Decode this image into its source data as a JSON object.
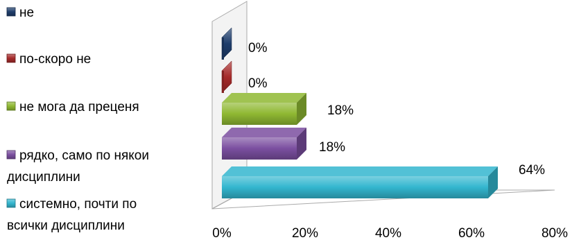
{
  "chart_data": {
    "type": "bar",
    "orientation": "horizontal",
    "style": "3d",
    "categories": [
      "не",
      "по-скоро не",
      "не мога да преценя",
      "рядко, само по някои дисциплини",
      "системно, почти по всички дисциплини"
    ],
    "values": [
      0,
      0,
      18,
      18,
      64
    ],
    "data_labels": [
      "0%",
      "0%",
      "18%",
      "18%",
      "64%"
    ],
    "colors": [
      "#1f3d6b",
      "#a52a2a",
      "#8fb832",
      "#7b4fa0",
      "#33b6cf"
    ],
    "xlim": [
      0,
      80
    ],
    "x_ticks": [
      "0%",
      "20%",
      "40%",
      "60%",
      "80%"
    ],
    "legend_position": "left",
    "grid": false
  }
}
